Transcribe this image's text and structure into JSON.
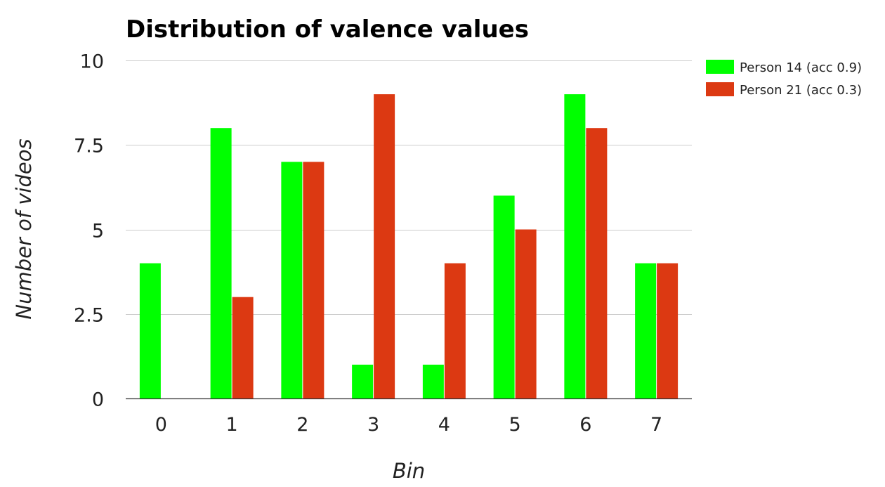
{
  "chart_data": {
    "type": "bar",
    "title": "Distribution of valence values",
    "xlabel": "Bin",
    "ylabel": "Number of videos",
    "categories": [
      "0",
      "1",
      "2",
      "3",
      "4",
      "5",
      "6",
      "7"
    ],
    "series": [
      {
        "name": "Person 14 (acc 0.9)",
        "color": "#00ff00",
        "values": [
          4,
          8,
          7,
          1,
          1,
          6,
          9,
          4
        ]
      },
      {
        "name": "Person 21 (acc 0.3)",
        "color": "#dc3912",
        "values": [
          0,
          3,
          7,
          9,
          4,
          5,
          8,
          4
        ]
      }
    ],
    "ylim": [
      0,
      10
    ],
    "yticks": [
      0,
      2.5,
      5,
      7.5,
      10
    ],
    "ytick_labels": [
      "0",
      "2.5",
      "5",
      "7.5",
      "10"
    ],
    "grid": true,
    "legend_position": "top-right"
  }
}
